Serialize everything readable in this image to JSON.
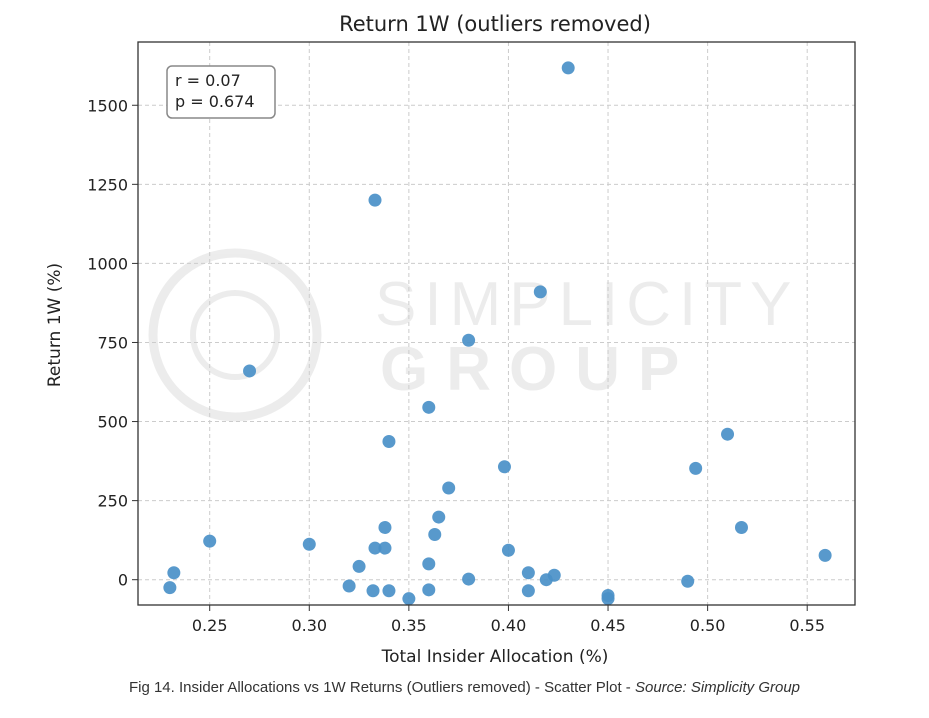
{
  "chart_data": {
    "type": "scatter",
    "title": "Return 1W (outliers removed)",
    "xlabel": "Total Insider Allocation (%)",
    "ylabel": "Return 1W (%)",
    "xlim": [
      0.214,
      0.574
    ],
    "ylim": [
      -80,
      1700
    ],
    "xticks": [
      0.25,
      0.3,
      0.35,
      0.4,
      0.45,
      0.5,
      0.55
    ],
    "xtick_labels": [
      "0.25",
      "0.30",
      "0.35",
      "0.40",
      "0.45",
      "0.50",
      "0.55"
    ],
    "yticks": [
      0,
      250,
      500,
      750,
      1000,
      1250,
      1500
    ],
    "ytick_labels": [
      "0",
      "250",
      "500",
      "750",
      "1000",
      "1250",
      "1500"
    ],
    "grid": true,
    "annotation": {
      "line1": "r = 0.07",
      "line2": "p = 0.674"
    },
    "watermark": {
      "line1": "SIMPLICITY",
      "line2": "GROUP"
    },
    "color": "#4a90c8",
    "points": [
      {
        "x": 0.23,
        "y": -25
      },
      {
        "x": 0.232,
        "y": 22
      },
      {
        "x": 0.25,
        "y": 122
      },
      {
        "x": 0.27,
        "y": 660
      },
      {
        "x": 0.3,
        "y": 112
      },
      {
        "x": 0.32,
        "y": -20
      },
      {
        "x": 0.325,
        "y": 42
      },
      {
        "x": 0.332,
        "y": -35
      },
      {
        "x": 0.333,
        "y": 100
      },
      {
        "x": 0.333,
        "y": 1200
      },
      {
        "x": 0.338,
        "y": 100
      },
      {
        "x": 0.338,
        "y": 165
      },
      {
        "x": 0.34,
        "y": -35
      },
      {
        "x": 0.34,
        "y": 437
      },
      {
        "x": 0.35,
        "y": -60
      },
      {
        "x": 0.36,
        "y": 50
      },
      {
        "x": 0.36,
        "y": -32
      },
      {
        "x": 0.36,
        "y": 545
      },
      {
        "x": 0.363,
        "y": 143
      },
      {
        "x": 0.365,
        "y": 198
      },
      {
        "x": 0.37,
        "y": 290
      },
      {
        "x": 0.38,
        "y": 2
      },
      {
        "x": 0.38,
        "y": 757
      },
      {
        "x": 0.398,
        "y": 357
      },
      {
        "x": 0.4,
        "y": 93
      },
      {
        "x": 0.41,
        "y": 22
      },
      {
        "x": 0.41,
        "y": -35
      },
      {
        "x": 0.416,
        "y": 910
      },
      {
        "x": 0.419,
        "y": 0
      },
      {
        "x": 0.423,
        "y": 14
      },
      {
        "x": 0.43,
        "y": 1618
      },
      {
        "x": 0.45,
        "y": -50
      },
      {
        "x": 0.45,
        "y": -60
      },
      {
        "x": 0.49,
        "y": -5
      },
      {
        "x": 0.494,
        "y": 352
      },
      {
        "x": 0.51,
        "y": 460
      },
      {
        "x": 0.517,
        "y": 165
      },
      {
        "x": 0.559,
        "y": 77
      }
    ]
  },
  "caption": {
    "text": "Fig 14. Insider Allocations vs 1W Returns (Outliers removed) - Scatter Plot - ",
    "source": "Source: Simplicity Group"
  }
}
